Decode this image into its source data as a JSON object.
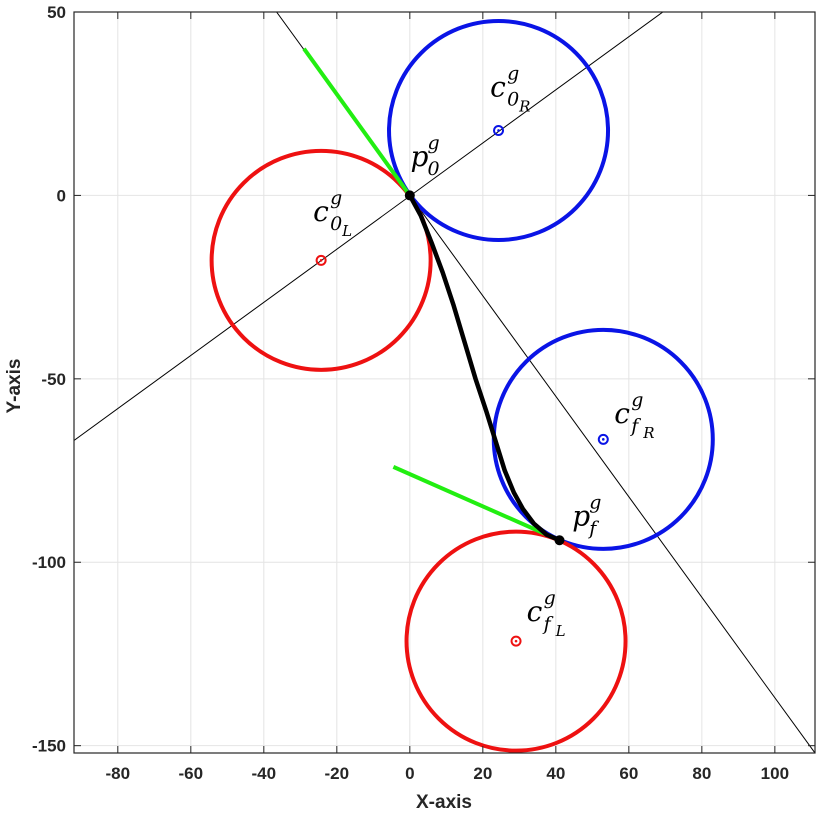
{
  "chart_data": {
    "type": "line",
    "xlabel": "X-axis",
    "ylabel": "Y-axis",
    "xlim": [
      -92,
      111
    ],
    "ylim": [
      -152,
      50
    ],
    "xticks": [
      -80,
      -60,
      -40,
      -20,
      0,
      20,
      40,
      60,
      80,
      100
    ],
    "yticks": [
      50,
      0,
      -50,
      -100,
      -150
    ],
    "grid": true,
    "colors": {
      "red": "#ee1111",
      "blue": "#0a14e6",
      "green": "#22ee11",
      "black": "#000000",
      "grid": "#e4e4e4"
    },
    "circles": [
      {
        "name": "c0L",
        "center": [
          -24.3,
          -17.7
        ],
        "radius": 30,
        "color": "red"
      },
      {
        "name": "c0R",
        "center": [
          24.3,
          17.7
        ],
        "radius": 30,
        "color": "blue"
      },
      {
        "name": "cfR",
        "center": [
          53,
          -66.5
        ],
        "radius": 30,
        "color": "blue"
      },
      {
        "name": "cfL",
        "center": [
          29.1,
          -121.5
        ],
        "radius": 30,
        "color": "red"
      }
    ],
    "reference_lines": [
      {
        "points": [
          [
            -92,
            -66.8
          ],
          [
            70,
            50.5
          ]
        ]
      },
      {
        "points": [
          [
            -36.5,
            50
          ],
          [
            111,
            -152
          ]
        ]
      }
    ],
    "heading_segments": [
      {
        "points": [
          [
            0,
            0
          ],
          [
            -29,
            40
          ]
        ]
      },
      {
        "points": [
          [
            41,
            -94
          ],
          [
            -4.5,
            -74
          ]
        ]
      }
    ],
    "path": [
      [
        0,
        0
      ],
      [
        3,
        -5.5
      ],
      [
        6,
        -13
      ],
      [
        9,
        -21
      ],
      [
        12,
        -30
      ],
      [
        15,
        -40
      ],
      [
        18,
        -50
      ],
      [
        21,
        -59
      ],
      [
        23.5,
        -67
      ],
      [
        26,
        -75
      ],
      [
        28.5,
        -81
      ],
      [
        31,
        -85.5
      ],
      [
        34,
        -89.5
      ],
      [
        37.5,
        -92.5
      ],
      [
        41,
        -94
      ]
    ],
    "points": [
      {
        "name": "p0",
        "x": 0,
        "y": 0
      },
      {
        "name": "pf",
        "x": 41,
        "y": -94
      }
    ],
    "annotations": [
      {
        "base": "p",
        "sub1": "0",
        "sub2": "",
        "sup": "g",
        "anchor": [
          0.2,
          8
        ]
      },
      {
        "base": "p",
        "sub1": "f",
        "sub2": "",
        "sup": "g",
        "anchor": [
          44.5,
          -90
        ]
      },
      {
        "base": "c",
        "sub1": "0",
        "sub2": "R",
        "sup": "g",
        "anchor": [
          22,
          27
        ]
      },
      {
        "base": "c",
        "sub1": "0",
        "sub2": "L",
        "sup": "g",
        "anchor": [
          -26.5,
          -7
        ]
      },
      {
        "base": "c",
        "sub1": "f",
        "sub2": "R",
        "sup": "g",
        "anchor": [
          56,
          -62
        ]
      },
      {
        "base": "c",
        "sub1": "f",
        "sub2": "L",
        "sup": "g",
        "anchor": [
          32,
          -116
        ]
      }
    ]
  }
}
